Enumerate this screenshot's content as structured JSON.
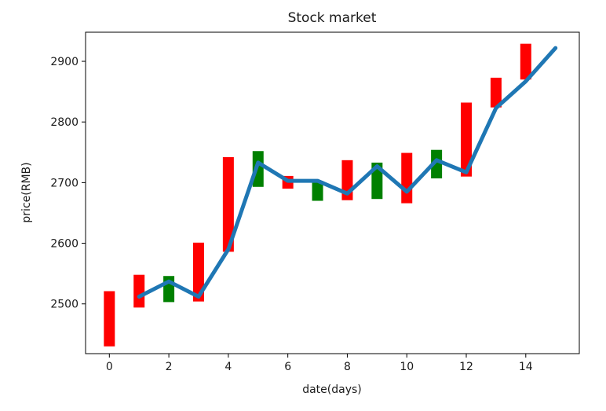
{
  "chart_data": {
    "type": "bar",
    "title": "Stock market",
    "xlabel": "date(days)",
    "ylabel": "price(RMB)",
    "xlim": [
      -0.8,
      15.8
    ],
    "ylim": [
      2418,
      2948
    ],
    "xticks": [
      0,
      2,
      4,
      6,
      8,
      10,
      12,
      14
    ],
    "yticks": [
      2500,
      2600,
      2700,
      2800,
      2900
    ],
    "grid": false,
    "colors": {
      "up": "#ff0000",
      "down": "#008000",
      "line": "#1f77b4"
    },
    "bars": [
      {
        "x": 0,
        "low": 2430,
        "high": 2521,
        "direction": "up"
      },
      {
        "x": 1,
        "low": 2494,
        "high": 2548,
        "direction": "up"
      },
      {
        "x": 2,
        "low": 2503,
        "high": 2546,
        "direction": "down"
      },
      {
        "x": 3,
        "low": 2504,
        "high": 2601,
        "direction": "up"
      },
      {
        "x": 4,
        "low": 2586,
        "high": 2742,
        "direction": "up"
      },
      {
        "x": 5,
        "low": 2693,
        "high": 2752,
        "direction": "down"
      },
      {
        "x": 6,
        "low": 2690,
        "high": 2711,
        "direction": "up"
      },
      {
        "x": 7,
        "low": 2670,
        "high": 2703,
        "direction": "down"
      },
      {
        "x": 8,
        "low": 2671,
        "high": 2737,
        "direction": "up"
      },
      {
        "x": 9,
        "low": 2673,
        "high": 2733,
        "direction": "down"
      },
      {
        "x": 10,
        "low": 2666,
        "high": 2749,
        "direction": "up"
      },
      {
        "x": 11,
        "low": 2707,
        "high": 2754,
        "direction": "down"
      },
      {
        "x": 12,
        "low": 2710,
        "high": 2832,
        "direction": "up"
      },
      {
        "x": 13,
        "low": 2824,
        "high": 2873,
        "direction": "up"
      },
      {
        "x": 14,
        "low": 2870,
        "high": 2929,
        "direction": "up"
      }
    ],
    "line": {
      "x": [
        1,
        2,
        3,
        4,
        5,
        6,
        7,
        8,
        9,
        10,
        11,
        12,
        13,
        14,
        15
      ],
      "y": [
        2512,
        2537,
        2512,
        2590,
        2733,
        2703,
        2703,
        2682,
        2727,
        2685,
        2737,
        2717,
        2823,
        2867,
        2922
      ]
    }
  }
}
